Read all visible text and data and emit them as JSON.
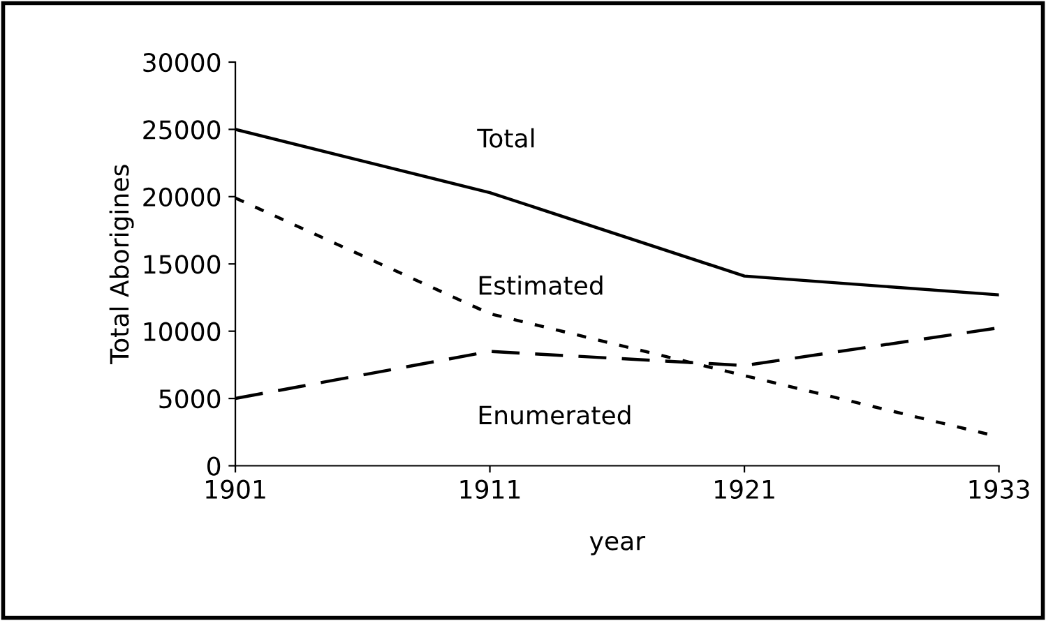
{
  "chart_data": {
    "type": "line",
    "xlabel": "year",
    "ylabel": "Total Aborigines",
    "categories": [
      "1901",
      "1911",
      "1921",
      "1933"
    ],
    "series": [
      {
        "name": "Total",
        "color": "#000000",
        "line_style": "solid",
        "values": [
          25000,
          20300,
          14100,
          12700
        ]
      },
      {
        "name": "Estimated",
        "color": "#000000",
        "line_style": "dotted",
        "values": [
          19900,
          11300,
          6700,
          2150
        ]
      },
      {
        "name": "Enumerated",
        "color": "#000000",
        "line_style": "dashed",
        "values": [
          5000,
          8500,
          7450,
          10250
        ]
      }
    ],
    "ylim": [
      0,
      30000
    ],
    "yticks": [
      0,
      5000,
      10000,
      15000,
      20000,
      25000,
      30000
    ],
    "grid": false,
    "legend": false,
    "marker": "none"
  }
}
